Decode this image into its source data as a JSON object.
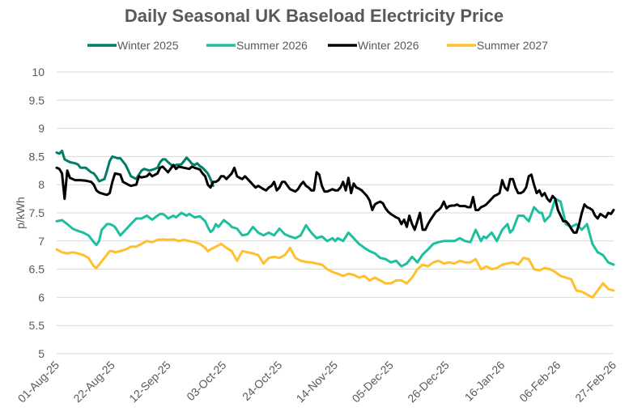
{
  "chart_data": {
    "type": "line",
    "title": "Daily Seasonal UK Baseload Electricity Price",
    "xlabel": "",
    "ylabel": "p/kWh",
    "ylim": [
      5,
      10
    ],
    "y_ticks": [
      "5",
      "5.5",
      "6",
      "6.5",
      "7",
      "7.5",
      "8",
      "8.5",
      "9",
      "9.5",
      "10"
    ],
    "y_tick_values": [
      5,
      5.5,
      6,
      6.5,
      7,
      7.5,
      8,
      8.5,
      9,
      9.5,
      10
    ],
    "x_start": "01-Aug-25",
    "x_end": "27-Feb-26",
    "x_range_days": [
      0,
      210
    ],
    "x_ticks": [
      "01-Aug-25",
      "22-Aug-25",
      "12-Sep-25",
      "03-Oct-25",
      "24-Oct-25",
      "14-Nov-25",
      "05-Dec-25",
      "26-Dec-25",
      "16-Jan-26",
      "06-Feb-26",
      "27-Feb-26"
    ],
    "x_tick_days": [
      0,
      21,
      42,
      63,
      84,
      105,
      126,
      147,
      168,
      189,
      210
    ],
    "grid": true,
    "legend_position": "top",
    "series": [
      {
        "name": "Winter 2025",
        "color": "#007E66",
        "days": [
          0,
          1,
          2,
          3,
          5,
          7,
          8,
          9,
          11,
          13,
          14,
          15,
          16,
          18,
          19,
          20,
          21,
          23,
          24,
          26,
          27,
          28,
          30,
          31,
          32,
          33,
          35,
          37,
          38,
          39,
          40,
          41,
          42,
          44,
          45,
          47,
          48,
          49,
          50,
          51,
          52,
          53,
          54,
          55,
          56,
          57,
          58,
          59
        ],
        "values": [
          8.57,
          8.55,
          8.6,
          8.45,
          8.4,
          8.38,
          8.36,
          8.3,
          8.3,
          8.22,
          8.2,
          8.14,
          8.06,
          8.1,
          8.25,
          8.42,
          8.5,
          8.47,
          8.47,
          8.35,
          8.25,
          8.15,
          8.1,
          8.18,
          8.25,
          8.28,
          8.25,
          8.28,
          8.3,
          8.4,
          8.45,
          8.45,
          8.4,
          8.32,
          8.35,
          8.36,
          8.42,
          8.48,
          8.43,
          8.37,
          8.35,
          8.38,
          8.33,
          8.3,
          8.25,
          8.2,
          8.1,
          7.98
        ]
      },
      {
        "name": "Summer 2026",
        "color": "#1DBF9F",
        "days": [
          0,
          2,
          4,
          6,
          7,
          8,
          10,
          12,
          14,
          15,
          16,
          17,
          19,
          20,
          21,
          22,
          24,
          26,
          28,
          30,
          32,
          34,
          36,
          38,
          39,
          40,
          41,
          42,
          44,
          45,
          47,
          49,
          50,
          52,
          54,
          56,
          57,
          58,
          59,
          60,
          61,
          63,
          65,
          66,
          68,
          70,
          72,
          74,
          76,
          78,
          80,
          82,
          84,
          86,
          88,
          90,
          92,
          94,
          96,
          98,
          100,
          102,
          104,
          105,
          106,
          108,
          110,
          112,
          114,
          116,
          118,
          120,
          122,
          124,
          126,
          128,
          130,
          132,
          134,
          136,
          138,
          140,
          142,
          144,
          146,
          148,
          150,
          152,
          154,
          156,
          158,
          160,
          161,
          162,
          164,
          166,
          168,
          170,
          171,
          172,
          174,
          176,
          178,
          180,
          182,
          183,
          184,
          186,
          188,
          190,
          192,
          194,
          196,
          198,
          200,
          202,
          204,
          206,
          208,
          210
        ],
        "values": [
          7.35,
          7.37,
          7.3,
          7.22,
          7.2,
          7.18,
          7.15,
          7.1,
          6.98,
          6.93,
          7.0,
          7.2,
          7.3,
          7.3,
          7.28,
          7.25,
          7.1,
          7.2,
          7.3,
          7.4,
          7.4,
          7.45,
          7.38,
          7.45,
          7.48,
          7.48,
          7.45,
          7.4,
          7.45,
          7.42,
          7.5,
          7.45,
          7.48,
          7.42,
          7.44,
          7.35,
          7.25,
          7.16,
          7.2,
          7.3,
          7.25,
          7.37,
          7.3,
          7.25,
          7.22,
          7.1,
          7.12,
          7.25,
          7.15,
          7.1,
          7.15,
          7.1,
          7.22,
          7.12,
          7.08,
          7.05,
          7.1,
          7.28,
          7.15,
          7.05,
          7.08,
          7.0,
          7.05,
          7.0,
          7.05,
          7.0,
          7.15,
          7.05,
          6.95,
          6.88,
          6.82,
          6.78,
          6.7,
          6.68,
          6.62,
          6.65,
          6.55,
          6.6,
          6.72,
          6.62,
          6.76,
          6.85,
          6.95,
          6.98,
          7.0,
          7.0,
          7.0,
          7.05,
          7.0,
          6.98,
          7.2,
          7.0,
          7.08,
          7.05,
          7.15,
          7.0,
          7.2,
          7.3,
          7.15,
          7.2,
          7.45,
          7.45,
          7.35,
          7.6,
          7.5,
          7.5,
          7.35,
          7.45,
          7.75,
          7.7,
          7.3,
          7.25,
          7.3,
          7.2,
          7.3,
          6.95,
          6.8,
          6.75,
          6.62,
          6.58
        ]
      },
      {
        "name": "Winter 2026",
        "color": "#000000",
        "days": [
          0,
          1,
          2,
          3,
          4,
          5,
          7,
          9,
          11,
          13,
          14,
          15,
          16,
          18,
          19,
          20,
          21,
          22,
          24,
          25,
          27,
          28,
          30,
          31,
          32,
          34,
          35,
          36,
          38,
          39,
          40,
          42,
          44,
          45,
          46,
          48,
          50,
          51,
          52,
          54,
          55,
          56,
          57,
          58,
          59,
          60,
          61,
          62,
          63,
          64,
          66,
          67,
          68,
          69,
          70,
          71,
          72,
          73,
          74,
          75,
          76,
          78,
          79,
          80,
          81,
          82,
          83,
          84,
          85,
          86,
          88,
          89,
          90,
          91,
          92,
          93,
          94,
          95,
          96,
          97,
          98,
          99,
          100,
          101,
          102,
          103,
          104,
          105,
          106,
          107,
          108,
          109,
          110,
          111,
          112,
          113,
          114,
          115,
          116,
          117,
          118,
          119,
          120,
          121,
          122,
          123,
          124,
          125,
          126,
          127,
          128,
          129,
          130,
          131,
          132,
          133,
          134,
          135,
          136,
          137,
          138,
          139,
          140,
          141,
          142,
          143,
          144,
          145,
          146,
          147,
          148,
          149,
          150,
          151,
          152,
          153,
          154,
          155,
          156,
          157,
          158,
          159,
          160,
          161,
          162,
          163,
          164,
          165,
          166,
          167,
          168,
          169,
          170,
          171,
          172,
          173,
          174,
          175,
          176,
          177,
          178,
          179,
          180,
          181,
          182,
          183,
          184,
          185,
          186,
          187,
          188,
          189,
          190,
          191,
          192,
          193,
          194,
          195,
          196,
          197,
          198,
          199,
          200,
          201,
          202,
          203,
          204,
          205,
          206,
          207,
          208,
          209,
          210
        ],
        "values": [
          8.3,
          8.28,
          8.2,
          7.75,
          8.25,
          8.12,
          8.08,
          8.08,
          8.07,
          8.05,
          8.0,
          7.9,
          7.86,
          7.83,
          7.82,
          7.85,
          8.05,
          8.2,
          8.18,
          8.05,
          8.0,
          7.98,
          8.0,
          8.15,
          8.13,
          8.15,
          8.2,
          8.15,
          8.2,
          8.3,
          8.32,
          8.22,
          8.35,
          8.28,
          8.32,
          8.3,
          8.28,
          8.32,
          8.3,
          8.27,
          8.2,
          8.15,
          8.0,
          7.95,
          8.05,
          8.05,
          8.08,
          8.15,
          8.15,
          8.1,
          8.2,
          8.3,
          8.15,
          8.12,
          8.1,
          8.15,
          8.1,
          8.05,
          8.0,
          7.95,
          7.98,
          7.92,
          7.9,
          7.95,
          7.98,
          8.05,
          7.9,
          7.95,
          8.05,
          8.05,
          7.92,
          7.9,
          7.88,
          7.92,
          8.0,
          8.05,
          7.98,
          7.95,
          7.9,
          7.9,
          8.22,
          8.18,
          7.98,
          7.88,
          7.88,
          7.9,
          7.92,
          7.9,
          7.9,
          7.95,
          8.05,
          7.9,
          8.12,
          7.85,
          8.02,
          7.95,
          7.93,
          7.9,
          7.85,
          7.8,
          7.72,
          7.55,
          7.65,
          7.68,
          7.7,
          7.67,
          7.58,
          7.52,
          7.48,
          7.45,
          7.42,
          7.4,
          7.3,
          7.38,
          7.25,
          7.45,
          7.3,
          7.2,
          7.35,
          7.5,
          7.2,
          7.2,
          7.3,
          7.38,
          7.45,
          7.52,
          7.55,
          7.6,
          7.7,
          7.58,
          7.62,
          7.63,
          7.63,
          7.65,
          7.62,
          7.62,
          7.62,
          7.6,
          7.6,
          7.78,
          7.55,
          7.55,
          7.6,
          7.62,
          7.65,
          7.7,
          7.75,
          7.8,
          7.82,
          7.85,
          8.08,
          7.95,
          7.9,
          8.1,
          8.1,
          7.95,
          7.85,
          7.85,
          7.88,
          7.95,
          8.15,
          8.18,
          8.0,
          7.85,
          7.9,
          7.8,
          7.85,
          7.75,
          7.7,
          7.8,
          7.75,
          7.55,
          7.45,
          7.35,
          7.35,
          7.3,
          7.22,
          7.15,
          7.15,
          7.3,
          7.5,
          7.65,
          7.6,
          7.58,
          7.55,
          7.45,
          7.4,
          7.48,
          7.45,
          7.42,
          7.5,
          7.48,
          7.55,
          7.5,
          7.48,
          7.52,
          7.55,
          7.55,
          7.55
        ]
      },
      {
        "name": "Summer 2027",
        "color": "#FFC02B",
        "days": [
          0,
          2,
          4,
          6,
          8,
          10,
          12,
          14,
          15,
          16,
          18,
          20,
          21,
          22,
          24,
          26,
          28,
          30,
          32,
          34,
          36,
          38,
          40,
          42,
          44,
          46,
          48,
          50,
          52,
          54,
          56,
          57,
          58,
          60,
          62,
          64,
          66,
          68,
          70,
          72,
          74,
          76,
          78,
          80,
          82,
          84,
          86,
          88,
          90,
          92,
          94,
          96,
          98,
          100,
          102,
          104,
          106,
          108,
          110,
          112,
          114,
          116,
          118,
          120,
          122,
          124,
          126,
          128,
          130,
          132,
          134,
          136,
          138,
          140,
          142,
          144,
          146,
          148,
          150,
          152,
          154,
          156,
          158,
          160,
          161,
          162,
          164,
          166,
          168,
          170,
          172,
          174,
          176,
          178,
          180,
          182,
          184,
          186,
          188,
          190,
          192,
          194,
          196,
          198,
          200,
          202,
          204,
          206,
          208,
          210
        ],
        "values": [
          6.85,
          6.8,
          6.78,
          6.8,
          6.78,
          6.75,
          6.7,
          6.55,
          6.52,
          6.58,
          6.7,
          6.82,
          6.82,
          6.8,
          6.82,
          6.85,
          6.9,
          6.9,
          6.95,
          7.0,
          6.98,
          7.02,
          7.03,
          7.02,
          7.03,
          7.0,
          7.02,
          7.0,
          6.98,
          6.95,
          6.88,
          6.82,
          6.85,
          6.9,
          6.95,
          6.88,
          6.82,
          6.65,
          6.82,
          6.8,
          6.78,
          6.75,
          6.6,
          6.7,
          6.72,
          6.7,
          6.75,
          6.88,
          6.7,
          6.65,
          6.63,
          6.62,
          6.6,
          6.58,
          6.5,
          6.45,
          6.42,
          6.38,
          6.42,
          6.4,
          6.35,
          6.38,
          6.3,
          6.35,
          6.3,
          6.25,
          6.25,
          6.3,
          6.3,
          6.25,
          6.35,
          6.5,
          6.58,
          6.55,
          6.62,
          6.65,
          6.6,
          6.62,
          6.6,
          6.65,
          6.62,
          6.62,
          6.68,
          6.5,
          6.52,
          6.55,
          6.5,
          6.52,
          6.58,
          6.6,
          6.62,
          6.58,
          6.7,
          6.68,
          6.5,
          6.48,
          6.52,
          6.5,
          6.45,
          6.38,
          6.35,
          6.32,
          6.12,
          6.1,
          6.05,
          6.0,
          6.12,
          6.25,
          6.15,
          6.12,
          6.12
        ]
      }
    ]
  }
}
